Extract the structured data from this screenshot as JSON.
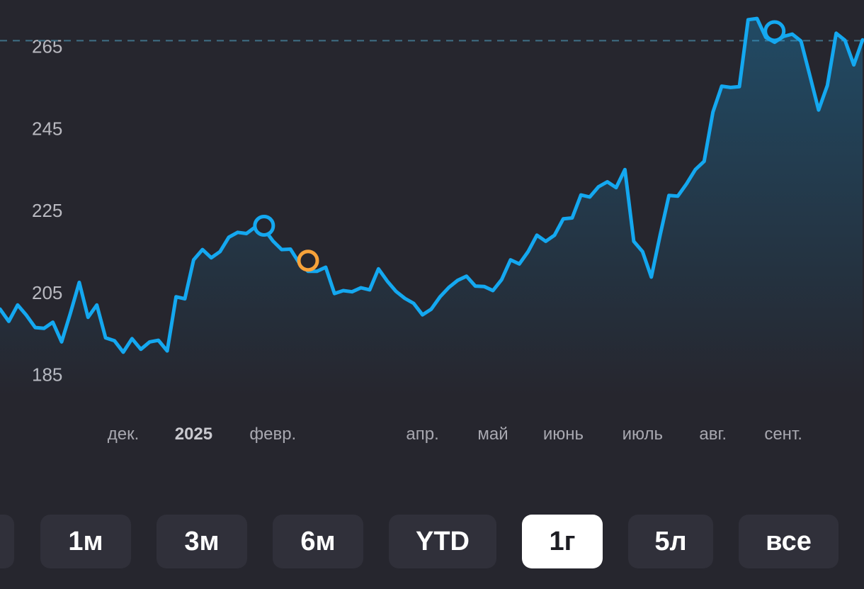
{
  "chart_data": {
    "type": "area",
    "y_ticks": [
      185,
      205,
      225,
      245,
      265
    ],
    "ylim": [
      179.6,
      276.3
    ],
    "x_axis_labels": [
      {
        "label": "дек.",
        "bold": false,
        "index": 14
      },
      {
        "label": "2025",
        "bold": true,
        "index": 22
      },
      {
        "label": "февр.",
        "bold": false,
        "index": 31
      },
      {
        "label": "апр.",
        "bold": false,
        "index": 48
      },
      {
        "label": "май",
        "bold": false,
        "index": 56
      },
      {
        "label": "июнь",
        "bold": false,
        "index": 64
      },
      {
        "label": "июль",
        "bold": false,
        "index": 73
      },
      {
        "label": "авг.",
        "bold": false,
        "index": 81
      },
      {
        "label": "сент.",
        "bold": false,
        "index": 89
      }
    ],
    "reference_value": 266.4,
    "series": [
      {
        "values": [
          201,
          198,
          202,
          199.5,
          196.5,
          196.3,
          197.8,
          193,
          200,
          207.5,
          199,
          202,
          194,
          193.3,
          190.5,
          193.8,
          191.2,
          193,
          193.4,
          190.8,
          204,
          203.5,
          213,
          215.5,
          213.5,
          215,
          218.5,
          219.7,
          219.4,
          221,
          220.5,
          217.6,
          215.5,
          215.6,
          212.2,
          210.2,
          210.2,
          211.2,
          204.8,
          205.5,
          205.2,
          206.2,
          205.7,
          210.8,
          207.8,
          205.3,
          203.6,
          202.4,
          199.6,
          201,
          204,
          206.3,
          208,
          209,
          206.6,
          206.5,
          205.5,
          208.2,
          213,
          212,
          215,
          219,
          217.5,
          219,
          223,
          223.2,
          228.8,
          228.3,
          230.8,
          232,
          230.6,
          235,
          217.5,
          215,
          208.8,
          219,
          228.7,
          228.5,
          231.5,
          235,
          237,
          249,
          255.3,
          255,
          255.2,
          271.5,
          271.8,
          267.2,
          266,
          267.4,
          268,
          266.3,
          258,
          249.5,
          255.5,
          268.2,
          266.5,
          260.5,
          266.6
        ],
        "color": "#14a8f0"
      }
    ],
    "markers": [
      {
        "index": 30,
        "value": 221.3,
        "color": "#14a8f0"
      },
      {
        "index": 35,
        "value": 212.8,
        "color": "#f7a23a"
      },
      {
        "index": 88,
        "value": 268.7,
        "color": "#14a8f0"
      }
    ]
  },
  "ranges": [
    {
      "label": "1м",
      "active": false
    },
    {
      "label": "3м",
      "active": false
    },
    {
      "label": "6м",
      "active": false
    },
    {
      "label": "YTD",
      "active": false
    },
    {
      "label": "1г",
      "active": true
    },
    {
      "label": "5л",
      "active": false
    },
    {
      "label": "все",
      "active": false
    }
  ]
}
